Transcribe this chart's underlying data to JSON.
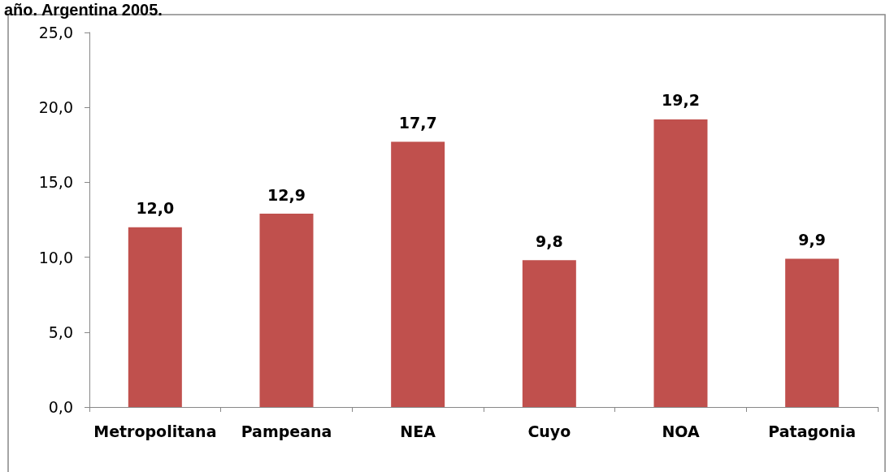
{
  "chart_data": {
    "type": "bar",
    "title": "año. Argentina 2005.",
    "categories": [
      "Metropolitana",
      "Pampeana",
      "NEA",
      "Cuyo",
      "NOA",
      "Patagonia"
    ],
    "values": [
      12.0,
      12.9,
      17.7,
      9.8,
      19.2,
      9.9
    ],
    "value_labels": [
      "12,0",
      "12,9",
      "17,7",
      "9,8",
      "19,2",
      "9,9"
    ],
    "color": "#c0504d",
    "ylim": [
      0,
      25
    ],
    "yticks": [
      {
        "value": 0,
        "label": "0,0"
      },
      {
        "value": 5,
        "label": "5,0"
      },
      {
        "value": 10,
        "label": "10,0"
      },
      {
        "value": 15,
        "label": "15,0"
      },
      {
        "value": 20,
        "label": "20,0"
      },
      {
        "value": 25,
        "label": "25,0"
      }
    ],
    "grid": false
  }
}
